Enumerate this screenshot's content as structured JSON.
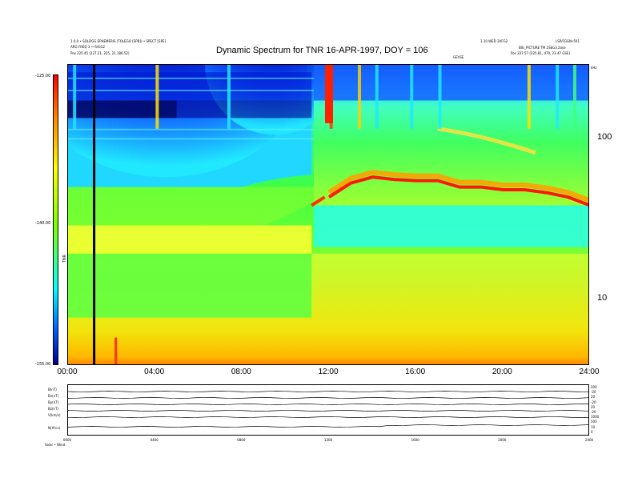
{
  "title": "Dynamic Spectrum for TNR 16-APR-1997, DOY = 106",
  "header": {
    "left_line1": "1.0.0 • SOLDGG EPHEMERIS (TOLEGO [SPB]) • SPECT [SPE]",
    "left_line2": "ARG FREQ 3 ••5/GG2",
    "left_line3": "Pos    225.45 (227.21, 225, 21.186.52)",
    "center": "GEVSE",
    "right_line1": "1.10 WED 3VFG2",
    "right_line1b": "LSP/FGGN•501",
    "right_line2": "BIG_PICTURE TM 2SEG3.2ose",
    "right_line3": "Pos    227.57 (225.81, 470, 23.47 GSE)"
  },
  "colorbar": {
    "top_label": "-125.00",
    "mid_label": "-140.00",
    "bottom_label": "-155.00",
    "axis_label": "TNR"
  },
  "chart_data": [
    {
      "type": "heatmap",
      "title": "Dynamic Spectrum for TNR 16-APR-1997, DOY = 106",
      "x_ticks": [
        "00:00",
        "04:00",
        "08:00",
        "12:00",
        "16:00",
        "20:00",
        "24:00"
      ],
      "x_range_hours": [
        0,
        24
      ],
      "y_scale": "log",
      "y_unit": "kHz",
      "y_ticks": [
        10,
        100
      ],
      "y_range_khz": [
        4,
        300
      ],
      "colorbar_range": [
        -155,
        -125
      ],
      "colorbar_ticks": [
        -125,
        -140,
        -155
      ],
      "colors": {
        "dark": "#000080",
        "blue": "#0a30ff",
        "cyan": "#00e8ff",
        "green": "#40ff40",
        "yellow": "#ffff20",
        "orange": "#ff9000",
        "red": "#ff1000"
      },
      "plasma_line_khz": [
        {
          "hour": 12.0,
          "khz": 45
        },
        {
          "hour": 13.0,
          "khz": 55
        },
        {
          "hour": 14.0,
          "khz": 60
        },
        {
          "hour": 15.0,
          "khz": 58
        },
        {
          "hour": 16.0,
          "khz": 57
        },
        {
          "hour": 17.0,
          "khz": 57
        },
        {
          "hour": 18.0,
          "khz": 52
        },
        {
          "hour": 19.0,
          "khz": 52
        },
        {
          "hour": 20.0,
          "khz": 50
        },
        {
          "hour": 21.0,
          "khz": 50
        },
        {
          "hour": 22.0,
          "khz": 48
        },
        {
          "hour": 23.0,
          "khz": 45
        },
        {
          "hour": 24.0,
          "khz": 40
        }
      ],
      "marker_hour": 1.2
    },
    {
      "type": "line",
      "x_ticks": [
        "0000",
        "0400",
        "0800",
        "1200",
        "1600",
        "2000",
        "2400"
      ],
      "series_labels": [
        "B(nT)",
        "Bx(nT)",
        "By(nT)",
        "Bz(nT)",
        "V(km/s)",
        "N(#/cc)"
      ],
      "right_labels": [
        "200",
        "-20",
        "20",
        "-20",
        "20",
        "-20",
        "1000",
        "500",
        "10",
        "0"
      ],
      "footer": "Solar • Wind"
    }
  ],
  "axes": {
    "right_unit": "kHz"
  }
}
